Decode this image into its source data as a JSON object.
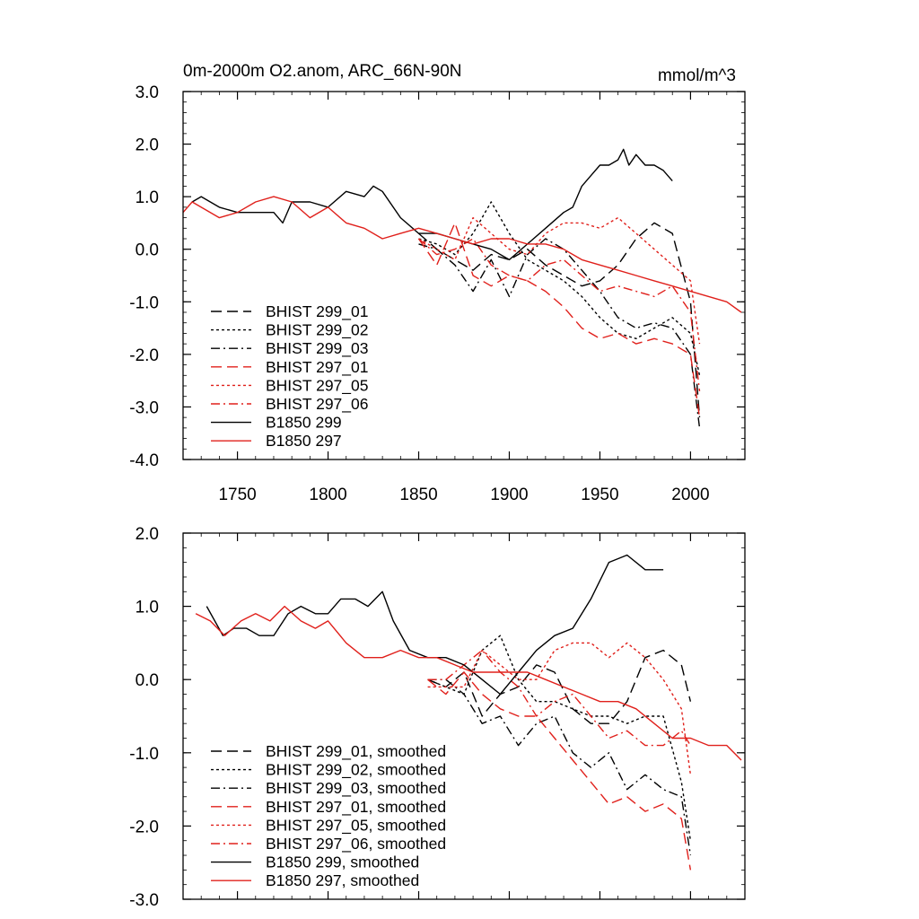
{
  "chart_data": [
    {
      "type": "line",
      "title": "0m-2000m O2.anom, ARC_66N-90N",
      "units_label": "mmol/m^3",
      "xlim": [
        1720,
        2030
      ],
      "ylim": [
        -4.0,
        3.0
      ],
      "xticks": [
        "1750",
        "1800",
        "1850",
        "1900",
        "1950",
        "2000"
      ],
      "yticks": [
        "3.0",
        "2.0",
        "1.0",
        "0.0",
        "-1.0",
        "-2.0",
        "-3.0",
        "-4.0"
      ],
      "legend_position": "lower-left",
      "series": [
        {
          "name": "BHIST 299_01",
          "color": "#000000",
          "dash": "long-dash",
          "x": [
            1850,
            1860,
            1870,
            1880,
            1890,
            1900,
            1910,
            1920,
            1930,
            1940,
            1950,
            1960,
            1970,
            1980,
            1990,
            2000,
            2005
          ],
          "y": [
            0.3,
            0.0,
            -0.2,
            -0.4,
            -0.1,
            -0.2,
            0.0,
            -0.3,
            -0.5,
            -0.7,
            -0.6,
            -0.3,
            0.2,
            0.5,
            0.3,
            -1.0,
            -3.2
          ]
        },
        {
          "name": "BHIST 299_02",
          "color": "#000000",
          "dash": "dot",
          "x": [
            1850,
            1860,
            1870,
            1880,
            1890,
            1900,
            1910,
            1920,
            1930,
            1940,
            1950,
            1960,
            1970,
            1980,
            1990,
            2000,
            2005
          ],
          "y": [
            0.2,
            0.1,
            -0.1,
            0.3,
            0.9,
            0.3,
            -0.2,
            -0.4,
            -0.6,
            -0.9,
            -1.3,
            -1.6,
            -1.7,
            -1.5,
            -1.3,
            -1.6,
            -2.4
          ]
        },
        {
          "name": "BHIST 299_03",
          "color": "#000000",
          "dash": "dash-dot",
          "x": [
            1850,
            1860,
            1870,
            1880,
            1890,
            1900,
            1910,
            1920,
            1930,
            1940,
            1950,
            1960,
            1970,
            1980,
            1990,
            2000,
            2005
          ],
          "y": [
            0.1,
            0.0,
            -0.3,
            -0.8,
            -0.2,
            -0.9,
            -0.1,
            0.2,
            0.0,
            -0.4,
            -0.8,
            -1.3,
            -1.5,
            -1.4,
            -1.5,
            -2.0,
            -3.4
          ]
        },
        {
          "name": "BHIST 297_01",
          "color": "#e0201b",
          "dash": "long-dash",
          "x": [
            1850,
            1860,
            1870,
            1880,
            1890,
            1900,
            1910,
            1920,
            1930,
            1940,
            1950,
            1960,
            1970,
            1980,
            1990,
            2000,
            2005
          ],
          "y": [
            0.2,
            -0.3,
            0.5,
            -0.5,
            -0.7,
            -0.5,
            -0.6,
            -0.8,
            -1.1,
            -1.5,
            -1.7,
            -1.6,
            -1.8,
            -1.7,
            -1.8,
            -2.0,
            -3.2
          ]
        },
        {
          "name": "BHIST 297_05",
          "color": "#e0201b",
          "dash": "dot",
          "x": [
            1850,
            1860,
            1870,
            1880,
            1890,
            1900,
            1910,
            1920,
            1930,
            1940,
            1950,
            1960,
            1970,
            1980,
            1990,
            2000,
            2005
          ],
          "y": [
            0.2,
            0.0,
            -0.2,
            0.6,
            0.3,
            0.0,
            -0.1,
            0.3,
            0.5,
            0.5,
            0.4,
            0.6,
            0.3,
            0.0,
            -0.3,
            -0.6,
            -1.8
          ]
        },
        {
          "name": "BHIST 297_06",
          "color": "#e0201b",
          "dash": "dash-dot",
          "x": [
            1850,
            1860,
            1870,
            1880,
            1890,
            1900,
            1910,
            1920,
            1930,
            1940,
            1950,
            1960,
            1970,
            1980,
            1990,
            2000,
            2005
          ],
          "y": [
            0.2,
            -0.1,
            0.0,
            0.2,
            -0.3,
            -0.5,
            -0.6,
            -0.3,
            -0.2,
            -0.5,
            -0.8,
            -0.7,
            -0.8,
            -0.9,
            -0.7,
            -1.2,
            -2.7
          ]
        },
        {
          "name": "B1850 299",
          "color": "#000000",
          "dash": "solid",
          "x": [
            1725,
            1730,
            1740,
            1750,
            1760,
            1770,
            1775,
            1780,
            1790,
            1800,
            1810,
            1820,
            1825,
            1830,
            1840,
            1850,
            1860,
            1870,
            1880,
            1890,
            1900,
            1910,
            1920,
            1930,
            1935,
            1940,
            1945,
            1950,
            1955,
            1960,
            1963,
            1966,
            1970,
            1975,
            1980,
            1985,
            1990
          ],
          "y": [
            0.9,
            1.0,
            0.8,
            0.7,
            0.7,
            0.7,
            0.5,
            0.9,
            0.9,
            0.8,
            1.1,
            1.0,
            1.2,
            1.1,
            0.6,
            0.3,
            0.3,
            0.2,
            0.1,
            0.0,
            -0.2,
            0.1,
            0.4,
            0.7,
            0.8,
            1.2,
            1.4,
            1.6,
            1.6,
            1.7,
            1.9,
            1.6,
            1.8,
            1.6,
            1.6,
            1.5,
            1.3
          ]
        },
        {
          "name": "B1850 297",
          "color": "#e0201b",
          "dash": "solid",
          "x": [
            1720,
            1725,
            1730,
            1740,
            1750,
            1760,
            1770,
            1780,
            1790,
            1800,
            1810,
            1820,
            1830,
            1840,
            1850,
            1860,
            1870,
            1880,
            1890,
            1900,
            1910,
            1920,
            1930,
            1940,
            1950,
            1960,
            1970,
            1980,
            1990,
            2000,
            2010,
            2020,
            2028
          ],
          "y": [
            0.7,
            0.9,
            0.8,
            0.6,
            0.7,
            0.9,
            1.0,
            0.9,
            0.6,
            0.8,
            0.5,
            0.4,
            0.2,
            0.3,
            0.4,
            0.3,
            0.2,
            0.1,
            0.2,
            0.2,
            0.1,
            0.1,
            0.0,
            -0.2,
            -0.3,
            -0.4,
            -0.5,
            -0.6,
            -0.7,
            -0.8,
            -0.9,
            -1.0,
            -1.2
          ]
        }
      ]
    },
    {
      "type": "line",
      "xlim": [
        1720,
        2030
      ],
      "ylim": [
        -3.0,
        2.0
      ],
      "yticks": [
        "2.0",
        "1.0",
        "0.0",
        "-1.0",
        "-2.0",
        "-3.0"
      ],
      "legend_position": "lower-left",
      "series": [
        {
          "name": "BHIST 299_01, smoothed",
          "color": "#000000",
          "dash": "long-dash",
          "x": [
            1855,
            1865,
            1875,
            1885,
            1895,
            1905,
            1915,
            1925,
            1935,
            1945,
            1955,
            1965,
            1975,
            1985,
            1995,
            2000
          ],
          "y": [
            0.0,
            -0.1,
            0.1,
            -0.5,
            -0.2,
            -0.1,
            0.2,
            0.1,
            -0.4,
            -0.6,
            -0.6,
            -0.3,
            0.3,
            0.4,
            0.2,
            -0.3
          ]
        },
        {
          "name": "BHIST 299_02, smoothed",
          "color": "#000000",
          "dash": "dot",
          "x": [
            1855,
            1865,
            1875,
            1885,
            1895,
            1905,
            1915,
            1925,
            1935,
            1945,
            1955,
            1965,
            1975,
            1985,
            1995,
            2000
          ],
          "y": [
            0.0,
            -0.1,
            -0.2,
            0.4,
            0.6,
            0.0,
            -0.3,
            -0.3,
            -0.4,
            -0.5,
            -0.5,
            -0.6,
            -0.5,
            -0.5,
            -1.4,
            -2.2
          ]
        },
        {
          "name": "BHIST 299_03, smoothed",
          "color": "#000000",
          "dash": "dash-dot",
          "x": [
            1855,
            1865,
            1875,
            1885,
            1895,
            1905,
            1915,
            1925,
            1935,
            1945,
            1955,
            1965,
            1975,
            1985,
            1995,
            2000
          ],
          "y": [
            0.0,
            0.0,
            -0.2,
            -0.6,
            -0.5,
            -0.9,
            -0.6,
            -0.5,
            -1.0,
            -1.2,
            -1.0,
            -1.5,
            -1.3,
            -1.5,
            -1.6,
            -2.4
          ]
        },
        {
          "name": "BHIST 297_01, smoothed",
          "color": "#e0201b",
          "dash": "long-dash",
          "x": [
            1855,
            1865,
            1875,
            1885,
            1895,
            1905,
            1915,
            1925,
            1935,
            1945,
            1955,
            1965,
            1975,
            1985,
            1995,
            2000
          ],
          "y": [
            0.0,
            -0.2,
            0.1,
            -0.2,
            -0.4,
            -0.5,
            -0.5,
            -0.8,
            -1.1,
            -1.4,
            -1.7,
            -1.6,
            -1.8,
            -1.7,
            -1.9,
            -2.6
          ]
        },
        {
          "name": "BHIST 297_05, smoothed",
          "color": "#e0201b",
          "dash": "dot",
          "x": [
            1855,
            1865,
            1875,
            1885,
            1895,
            1905,
            1915,
            1925,
            1935,
            1945,
            1955,
            1965,
            1975,
            1985,
            1995,
            2000
          ],
          "y": [
            -0.1,
            -0.1,
            -0.1,
            0.4,
            0.2,
            0.0,
            0.0,
            0.4,
            0.5,
            0.5,
            0.3,
            0.5,
            0.3,
            0.0,
            -0.4,
            -1.3
          ]
        },
        {
          "name": "BHIST 297_06, smoothed",
          "color": "#e0201b",
          "dash": "dash-dot",
          "x": [
            1855,
            1865,
            1875,
            1885,
            1895,
            1905,
            1915,
            1925,
            1935,
            1945,
            1955,
            1965,
            1975,
            1985,
            1995,
            2000
          ],
          "y": [
            0.0,
            0.0,
            0.2,
            0.4,
            0.1,
            -0.1,
            -0.5,
            -0.3,
            -0.2,
            -0.5,
            -0.8,
            -0.7,
            -0.9,
            -0.9,
            -0.7,
            -0.9
          ]
        },
        {
          "name": "B1850 299, smoothed",
          "color": "#000000",
          "dash": "solid",
          "x": [
            1733,
            1742,
            1748,
            1755,
            1762,
            1770,
            1778,
            1785,
            1793,
            1800,
            1807,
            1815,
            1822,
            1830,
            1836,
            1845,
            1855,
            1865,
            1875,
            1885,
            1895,
            1905,
            1915,
            1925,
            1935,
            1945,
            1955,
            1965,
            1975,
            1985
          ],
          "y": [
            1.0,
            0.6,
            0.7,
            0.7,
            0.6,
            0.6,
            0.9,
            1.0,
            0.9,
            0.9,
            1.1,
            1.1,
            1.0,
            1.2,
            0.8,
            0.4,
            0.3,
            0.3,
            0.2,
            0.0,
            -0.2,
            0.1,
            0.4,
            0.6,
            0.7,
            1.1,
            1.6,
            1.7,
            1.5,
            1.5
          ]
        },
        {
          "name": "B1850 297, smoothed",
          "color": "#e0201b",
          "dash": "solid",
          "x": [
            1727,
            1735,
            1743,
            1752,
            1760,
            1768,
            1776,
            1785,
            1793,
            1800,
            1810,
            1820,
            1830,
            1840,
            1850,
            1860,
            1870,
            1880,
            1890,
            1900,
            1910,
            1920,
            1930,
            1940,
            1950,
            1960,
            1970,
            1980,
            1990,
            2000,
            2010,
            2020,
            2028
          ],
          "y": [
            0.9,
            0.8,
            0.6,
            0.8,
            0.9,
            0.8,
            1.0,
            0.8,
            0.7,
            0.8,
            0.5,
            0.3,
            0.3,
            0.4,
            0.3,
            0.3,
            0.2,
            0.1,
            0.1,
            0.1,
            0.1,
            0.0,
            -0.1,
            -0.2,
            -0.3,
            -0.3,
            -0.4,
            -0.6,
            -0.8,
            -0.8,
            -0.9,
            -0.9,
            -1.1
          ]
        }
      ]
    }
  ]
}
